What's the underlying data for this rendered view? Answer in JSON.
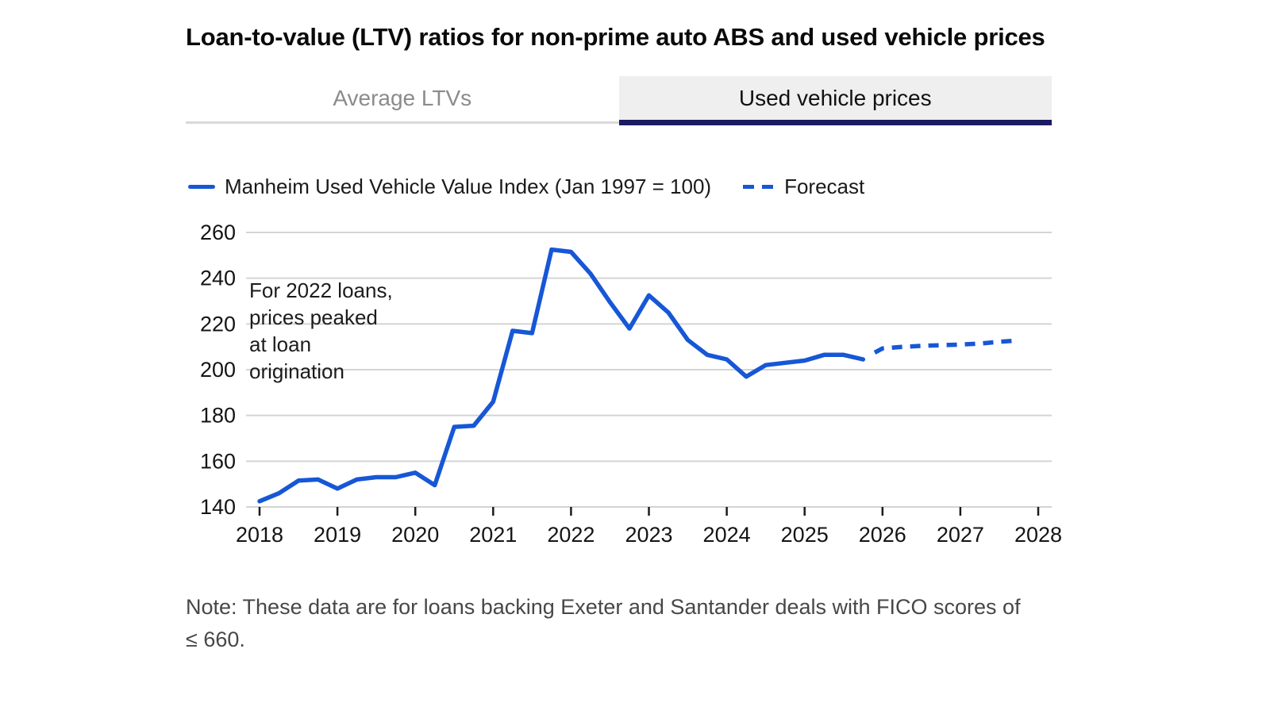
{
  "title": "Loan-to-value (LTV) ratios for non-prime auto ABS and used vehicle prices",
  "tabs": [
    {
      "label": "Average LTVs",
      "active": false
    },
    {
      "label": "Used vehicle prices",
      "active": true
    }
  ],
  "legend": [
    {
      "label": "Manheim Used Vehicle Value Index (Jan 1997 = 100)",
      "style": "solid"
    },
    {
      "label": "Forecast",
      "style": "dashed"
    }
  ],
  "annotation": {
    "lines": [
      "For 2022 loans,",
      "prices peaked",
      "at loan",
      "origination"
    ]
  },
  "note": {
    "lines": [
      "Note: These data are for loans backing Exeter and Santander deals with FICO scores of",
      "≤ 660."
    ]
  },
  "colors": {
    "accent_blue": "#1757d6",
    "tab_underline_navy": "#1b1b62",
    "tab_bg": "#efeff0",
    "inactive_tab_text": "#8b8b8b",
    "gridline": "#d4d4d4",
    "text_dark": "#121212",
    "note_text": "#474747"
  },
  "chart_data": {
    "type": "line",
    "title": "Used vehicle prices",
    "ylabel": "Manheim Used Vehicle Value Index (Jan 1997 = 100)",
    "ylim": [
      140,
      260
    ],
    "yticks": [
      140,
      160,
      180,
      200,
      220,
      240,
      260
    ],
    "xticks": [
      2018,
      2019,
      2020,
      2021,
      2022,
      2023,
      2024,
      2025,
      2026,
      2027,
      2028
    ],
    "grid": "horizontal",
    "legend_position": "top",
    "series": [
      {
        "name": "Manheim Used Vehicle Value Index (Jan 1997 = 100)",
        "style": "solid",
        "points": [
          [
            2018.0,
            142.5
          ],
          [
            2018.25,
            146
          ],
          [
            2018.5,
            151.5
          ],
          [
            2018.75,
            152
          ],
          [
            2019.0,
            148
          ],
          [
            2019.25,
            152
          ],
          [
            2019.5,
            153
          ],
          [
            2019.75,
            153
          ],
          [
            2020.0,
            155
          ],
          [
            2020.25,
            149.5
          ],
          [
            2020.5,
            175
          ],
          [
            2020.75,
            175.5
          ],
          [
            2021.0,
            186
          ],
          [
            2021.25,
            217
          ],
          [
            2021.5,
            216
          ],
          [
            2021.75,
            252.5
          ],
          [
            2022.0,
            251.5
          ],
          [
            2022.25,
            242
          ],
          [
            2022.5,
            229.5
          ],
          [
            2022.75,
            218
          ],
          [
            2023.0,
            232.5
          ],
          [
            2023.25,
            225
          ],
          [
            2023.5,
            213
          ],
          [
            2023.75,
            206.5
          ],
          [
            2024.0,
            204.5
          ],
          [
            2024.25,
            197
          ],
          [
            2024.5,
            202
          ],
          [
            2024.75,
            203
          ],
          [
            2025.0,
            204
          ],
          [
            2025.25,
            206.5
          ],
          [
            2025.5,
            206.5
          ],
          [
            2025.75,
            204.5
          ]
        ]
      },
      {
        "name": "Forecast",
        "style": "dashed",
        "points": [
          [
            2025.9,
            207.5
          ],
          [
            2026.0,
            209.3
          ],
          [
            2026.25,
            210
          ],
          [
            2026.5,
            210.4
          ],
          [
            2026.75,
            210.7
          ],
          [
            2027.0,
            211
          ],
          [
            2027.25,
            211.4
          ],
          [
            2027.5,
            212.2
          ],
          [
            2027.75,
            212.8
          ]
        ]
      }
    ]
  }
}
